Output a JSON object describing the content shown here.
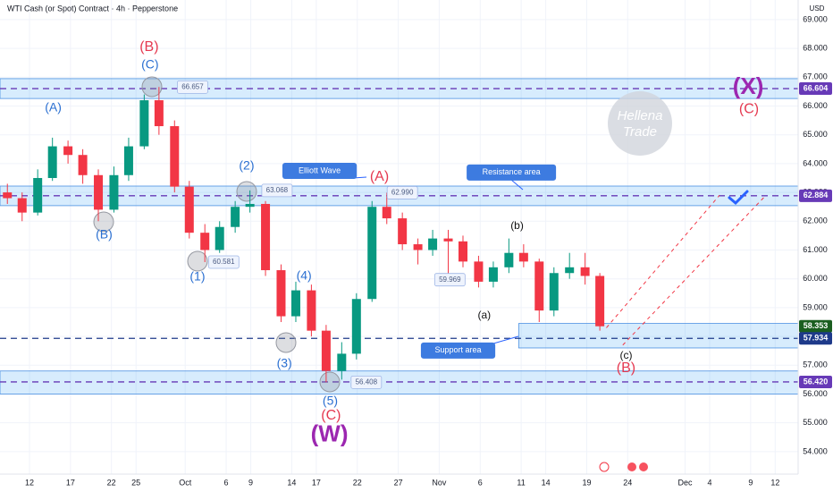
{
  "chart_data": {
    "type": "candlestick",
    "title": "WTI Cash (or Spot) Contract · 4h · Pepperstone",
    "currency": "USD",
    "x": [
      8.3,
      10.1,
      12.0,
      13.8,
      15.7,
      17.5,
      19.4,
      21.3,
      23.1,
      25.0,
      26.8,
      28.7,
      30.5,
      32.4,
      34.2,
      36.1,
      37.9,
      39.8,
      41.7,
      43.5,
      45.4,
      47.2,
      49.1,
      50.9,
      52.8,
      54.6,
      56.5,
      58.4,
      60.2,
      62.1,
      63.9,
      65.8,
      67.6,
      69.5,
      71.3,
      73.2,
      75.0,
      76.9,
      78.8,
      80.6
    ],
    "open": [
      63.0,
      62.8,
      62.3,
      63.5,
      64.6,
      64.3,
      63.6,
      62.4,
      63.6,
      64.6,
      66.2,
      65.3,
      63.2,
      61.6,
      61.0,
      61.8,
      62.5,
      62.6,
      60.3,
      58.7,
      59.6,
      58.2,
      56.8,
      57.4,
      59.3,
      62.5,
      62.1,
      61.2,
      61.0,
      61.4,
      61.3,
      60.6,
      59.9,
      60.4,
      60.9,
      60.6,
      58.9,
      60.2,
      60.4,
      60.1
    ],
    "high": [
      63.3,
      63.0,
      63.8,
      64.9,
      64.8,
      64.5,
      63.8,
      63.9,
      64.9,
      66.4,
      66.66,
      65.5,
      63.4,
      61.9,
      62.0,
      62.7,
      63.07,
      62.7,
      60.5,
      59.9,
      59.8,
      58.4,
      57.8,
      59.5,
      62.7,
      62.99,
      62.3,
      61.4,
      61.7,
      61.7,
      61.5,
      60.8,
      60.6,
      61.4,
      61.2,
      60.7,
      60.4,
      60.9,
      60.9,
      60.2
    ],
    "low": [
      62.6,
      62.0,
      62.2,
      63.4,
      64.0,
      63.3,
      62.0,
      62.3,
      63.4,
      64.5,
      65.0,
      63.0,
      61.4,
      60.58,
      60.9,
      61.6,
      62.3,
      60.1,
      58.5,
      58.5,
      58.0,
      56.41,
      56.5,
      57.2,
      59.2,
      61.9,
      61.0,
      60.5,
      60.8,
      59.97,
      60.4,
      59.7,
      59.7,
      60.2,
      60.4,
      58.5,
      58.7,
      60.0,
      59.8,
      58.2
    ],
    "close": [
      62.8,
      62.3,
      63.5,
      64.6,
      64.3,
      63.6,
      62.4,
      63.6,
      64.6,
      66.2,
      65.3,
      63.2,
      61.6,
      61.0,
      61.8,
      62.5,
      62.6,
      60.3,
      58.7,
      59.6,
      58.2,
      56.8,
      57.4,
      59.3,
      62.5,
      62.1,
      61.2,
      61.0,
      61.4,
      61.3,
      60.6,
      59.9,
      60.4,
      60.9,
      60.6,
      58.9,
      60.2,
      60.4,
      60.1,
      58.353
    ],
    "up_color": "#089981",
    "down_color": "#f23645",
    "xlim": [
      7.4,
      104.8
    ],
    "xticks": [
      {
        "value": 11,
        "label": "12"
      },
      {
        "value": 16,
        "label": "17"
      },
      {
        "value": 21,
        "label": "22"
      },
      {
        "value": 24,
        "label": "25"
      },
      {
        "value": 30,
        "label": "Oct"
      },
      {
        "value": 35,
        "label": "6"
      },
      {
        "value": 38,
        "label": "9"
      },
      {
        "value": 43,
        "label": "14"
      },
      {
        "value": 46,
        "label": "17"
      },
      {
        "value": 51,
        "label": "22"
      },
      {
        "value": 56,
        "label": "27"
      },
      {
        "value": 61,
        "label": "Nov"
      },
      {
        "value": 66,
        "label": "6"
      },
      {
        "value": 71,
        "label": "11"
      },
      {
        "value": 74,
        "label": "14"
      },
      {
        "value": 79,
        "label": "19"
      },
      {
        "value": 84,
        "label": "24"
      },
      {
        "value": 91,
        "label": "Dec"
      },
      {
        "value": 94,
        "label": "4"
      },
      {
        "value": 99,
        "label": "9"
      },
      {
        "value": 102,
        "label": "12"
      }
    ],
    "ylim": [
      53.22,
      69.68
    ],
    "yticks": [
      {
        "value": 54,
        "label": "54.000"
      },
      {
        "value": 55,
        "label": "55.000"
      },
      {
        "value": 56,
        "label": "56.000"
      },
      {
        "value": 57,
        "label": "57.000"
      },
      {
        "value": 58,
        "label": "58.000"
      },
      {
        "value": 59,
        "label": "59.000"
      },
      {
        "value": 60,
        "label": "60.000"
      },
      {
        "value": 61,
        "label": "61.000"
      },
      {
        "value": 62,
        "label": "62.000"
      },
      {
        "value": 63,
        "label": "63.000"
      },
      {
        "value": 64,
        "label": "64.000"
      },
      {
        "value": 65,
        "label": "65.000"
      },
      {
        "value": 66,
        "label": "66.000"
      },
      {
        "value": 67,
        "label": "67.000"
      },
      {
        "value": 68,
        "label": "68.000"
      },
      {
        "value": 69,
        "label": "69.000"
      }
    ],
    "zones": [
      {
        "y": [
          66.26,
          66.95
        ]
      },
      {
        "y": [
          62.54,
          63.22
        ]
      },
      {
        "y": [
          56.0,
          56.8
        ]
      },
      {
        "y": [
          57.6,
          58.45
        ],
        "from": 70.7
      }
    ],
    "levels": [
      {
        "value": 66.604,
        "label": "66.604",
        "color": "#673ab7",
        "line": true
      },
      {
        "value": 62.884,
        "label": "62.884",
        "color": "#673ab7",
        "line": true
      },
      {
        "value": 58.353,
        "label": "58.353",
        "color": "#1b5e20",
        "line": false
      },
      {
        "value": 57.934,
        "label": "57.934",
        "color": "#1e3a8a",
        "line": true
      },
      {
        "value": 56.42,
        "label": "56.420",
        "color": "#673ab7",
        "line": true
      }
    ],
    "price_tags": [
      {
        "value": 66.657,
        "label": "66.657",
        "x": 30.9
      },
      {
        "value": 63.068,
        "label": "63.068",
        "x": 41.2
      },
      {
        "value": 62.99,
        "label": "62.990",
        "x": 56.5
      },
      {
        "value": 60.581,
        "label": "60.581",
        "x": 34.7
      },
      {
        "value": 59.969,
        "label": "59.969",
        "x": 62.3
      },
      {
        "value": 56.408,
        "label": "56.408",
        "x": 52.1
      }
    ],
    "wave_labels": [
      {
        "text": "(B)",
        "x": 25.6,
        "y": 68.04,
        "color": "#e53950",
        "size": 16
      },
      {
        "text": "(C)",
        "x": 25.7,
        "y": 67.42,
        "color": "#2a6fd1",
        "size": 14
      },
      {
        "text": "(A)",
        "x": 13.9,
        "y": 65.93,
        "color": "#2a6fd1",
        "size": 14
      },
      {
        "text": "(B)",
        "x": 20.1,
        "y": 61.52,
        "color": "#2a6fd1",
        "size": 14
      },
      {
        "text": "(2)",
        "x": 37.5,
        "y": 63.91,
        "color": "#2a6fd1",
        "size": 14
      },
      {
        "text": "(1)",
        "x": 31.5,
        "y": 60.06,
        "color": "#2a6fd1",
        "size": 14
      },
      {
        "text": "(4)",
        "x": 44.5,
        "y": 60.09,
        "color": "#2a6fd1",
        "size": 14
      },
      {
        "text": "(3)",
        "x": 42.1,
        "y": 57.04,
        "color": "#2a6fd1",
        "size": 14
      },
      {
        "text": "(5)",
        "x": 47.7,
        "y": 55.74,
        "color": "#2a6fd1",
        "size": 14
      },
      {
        "text": "(C)",
        "x": 47.8,
        "y": 55.24,
        "color": "#e53950",
        "size": 16
      },
      {
        "text": "(W)",
        "x": 47.6,
        "y": 54.56,
        "color": "#9c27b0",
        "size": 26
      },
      {
        "text": "(A)",
        "x": 53.7,
        "y": 63.53,
        "color": "#e53950",
        "size": 16
      },
      {
        "text": "(b)",
        "x": 70.5,
        "y": 61.83,
        "color": "#111111",
        "size": 12
      },
      {
        "text": "(a)",
        "x": 66.5,
        "y": 58.72,
        "color": "#111111",
        "size": 12
      },
      {
        "text": "(c)",
        "x": 83.8,
        "y": 57.32,
        "color": "#111111",
        "size": 12
      },
      {
        "text": "(B)",
        "x": 83.8,
        "y": 56.89,
        "color": "#e53950",
        "size": 16
      },
      {
        "text": "(X)",
        "x": 98.7,
        "y": 66.64,
        "color": "#9c27b0",
        "size": 26
      },
      {
        "text": "(C)",
        "x": 98.8,
        "y": 65.89,
        "color": "#e53950",
        "size": 16
      }
    ],
    "callouts": [
      {
        "text": "Elliott Wave",
        "x": 46.4,
        "y": 63.75
      },
      {
        "text": "Resistance area",
        "x": 69.8,
        "y": 63.69
      },
      {
        "text": "Support area",
        "x": 63.3,
        "y": 57.51
      }
    ],
    "projections": [
      {
        "x": [
          81.4,
          95.2
        ],
        "y": [
          58.3,
          62.9
        ]
      },
      {
        "x": [
          83.4,
          100.7
        ],
        "y": [
          57.7,
          62.85
        ]
      }
    ],
    "watermark": [
      "Hellena",
      "Trade"
    ]
  }
}
